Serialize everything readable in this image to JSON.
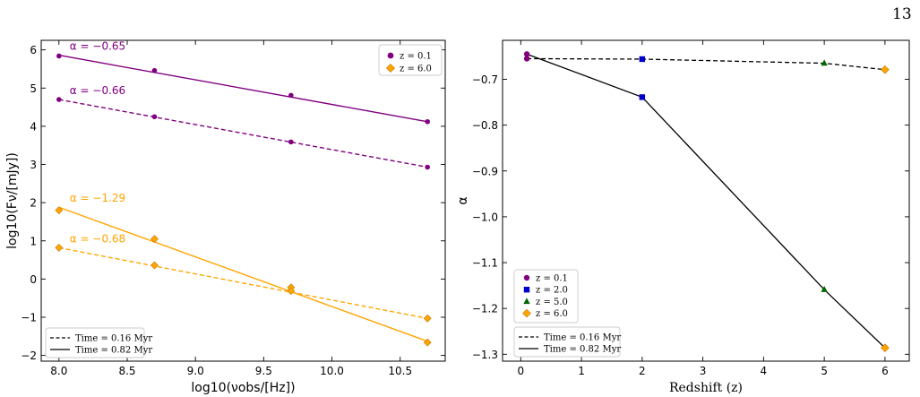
{
  "page_number": "13",
  "chart_data": [
    {
      "type": "line",
      "xlabel": "log10(νobs/[Hz])",
      "ylabel": "log10(Fν/[mJy])",
      "xlim": [
        7.87,
        10.83
      ],
      "ylim": [
        -2.15,
        6.25
      ],
      "x_ticks": [
        8.0,
        8.5,
        9.0,
        9.5,
        10.0,
        10.5
      ],
      "x_tick_labels": [
        "8.0",
        "8.5",
        "9.0",
        "9.5",
        "10.0",
        "10.5"
      ],
      "y_ticks": [
        -2,
        -1,
        0,
        1,
        2,
        3,
        4,
        5,
        6
      ],
      "y_tick_labels": [
        "−2",
        "−1",
        "0",
        "1",
        "2",
        "3",
        "4",
        "5",
        "6"
      ],
      "grid": false,
      "x": [
        8.0,
        8.7,
        9.7,
        10.7
      ],
      "series": [
        {
          "redshift": "0.1",
          "time": "0.82 Myr",
          "color": "#800080",
          "marker": "circle",
          "linestyle": "solid",
          "points": [
            5.84,
            5.46,
            4.81,
            4.12
          ],
          "fit": [
            5.86,
            4.12
          ],
          "annotation": "α = −0.65"
        },
        {
          "redshift": "0.1",
          "time": "0.16 Myr",
          "color": "#800080",
          "marker": "circle",
          "linestyle": "dashed",
          "points": [
            4.7,
            4.25,
            3.59,
            2.93
          ],
          "fit": [
            4.7,
            2.93
          ],
          "annotation": "α = −0.66"
        },
        {
          "redshift": "6.0",
          "time": "0.82 Myr",
          "color": "#ffa500",
          "marker": "diamond",
          "linestyle": "solid",
          "points": [
            1.8,
            1.05,
            -0.22,
            -1.66
          ],
          "fit": [
            1.88,
            -1.63
          ],
          "annotation": "α = −1.29"
        },
        {
          "redshift": "6.0",
          "time": "0.16 Myr",
          "color": "#ffa500",
          "marker": "diamond",
          "linestyle": "dashed",
          "points": [
            0.82,
            0.36,
            -0.31,
            -1.03
          ],
          "fit": [
            0.82,
            -1.03
          ],
          "annotation": "α = −0.68"
        }
      ],
      "legend_markers": {
        "position": "top-right",
        "items": [
          {
            "label": "z = 0.1",
            "marker": "circle",
            "color": "#800080"
          },
          {
            "label": "z = 6.0",
            "marker": "diamond",
            "color": "#ffa500"
          }
        ]
      },
      "legend_lines": {
        "position": "bottom-left",
        "items": [
          {
            "label": "Time = 0.16 Myr",
            "linestyle": "dashed"
          },
          {
            "label": "Time = 0.82 Myr",
            "linestyle": "solid"
          }
        ]
      }
    },
    {
      "type": "line",
      "xlabel": "Redshift (z)",
      "ylabel": "α",
      "xlim": [
        -0.3,
        6.4
      ],
      "ylim": [
        -1.315,
        -0.615
      ],
      "x_ticks": [
        0,
        1,
        2,
        3,
        4,
        5,
        6
      ],
      "x_tick_labels": [
        "0",
        "1",
        "2",
        "3",
        "4",
        "5",
        "6"
      ],
      "y_ticks": [
        -0.7,
        -0.8,
        -0.9,
        -1.0,
        -1.1,
        -1.2,
        -1.3
      ],
      "y_tick_labels": [
        "−0.7",
        "−0.8",
        "−0.9",
        "−1.0",
        "−1.1",
        "−1.2",
        "−1.3"
      ],
      "grid": false,
      "series": [
        {
          "time": "0.16 Myr",
          "linestyle": "dashed",
          "x": [
            0.1,
            2.0,
            5.0,
            6.0
          ],
          "values": [
            -0.655,
            -0.656,
            -0.665,
            -0.679
          ]
        },
        {
          "time": "0.82 Myr",
          "linestyle": "solid",
          "x": [
            0.1,
            2.0,
            5.0,
            6.0
          ],
          "values": [
            -0.645,
            -0.739,
            -1.159,
            -1.286
          ]
        }
      ],
      "points": [
        {
          "x": 0.1,
          "y": -0.655,
          "z": "0.1",
          "marker": "circle",
          "color": "#800080"
        },
        {
          "x": 0.1,
          "y": -0.645,
          "z": "0.1",
          "marker": "circle",
          "color": "#800080"
        },
        {
          "x": 2.0,
          "y": -0.656,
          "z": "2.0",
          "marker": "square",
          "color": "#0000cc"
        },
        {
          "x": 2.0,
          "y": -0.739,
          "z": "2.0",
          "marker": "square",
          "color": "#0000cc"
        },
        {
          "x": 5.0,
          "y": -0.665,
          "z": "5.0",
          "marker": "triangle",
          "color": "#006400"
        },
        {
          "x": 5.0,
          "y": -1.159,
          "z": "5.0",
          "marker": "triangle",
          "color": "#006400"
        },
        {
          "x": 6.0,
          "y": -0.679,
          "z": "6.0",
          "marker": "diamond",
          "color": "#ffa500"
        },
        {
          "x": 6.0,
          "y": -1.286,
          "z": "6.0",
          "marker": "diamond",
          "color": "#ffa500"
        }
      ],
      "legend_markers": {
        "position": "bottom-left",
        "items": [
          {
            "label": "z = 0.1",
            "marker": "circle",
            "color": "#800080"
          },
          {
            "label": "z = 2.0",
            "marker": "square",
            "color": "#0000cc"
          },
          {
            "label": "z = 5.0",
            "marker": "triangle",
            "color": "#006400"
          },
          {
            "label": "z = 6.0",
            "marker": "diamond",
            "color": "#ffa500"
          }
        ]
      },
      "legend_lines": {
        "position": "bottom-left",
        "items": [
          {
            "label": "Time = 0.16 Myr",
            "linestyle": "dashed"
          },
          {
            "label": "Time = 0.82 Myr",
            "linestyle": "solid"
          }
        ]
      }
    }
  ]
}
